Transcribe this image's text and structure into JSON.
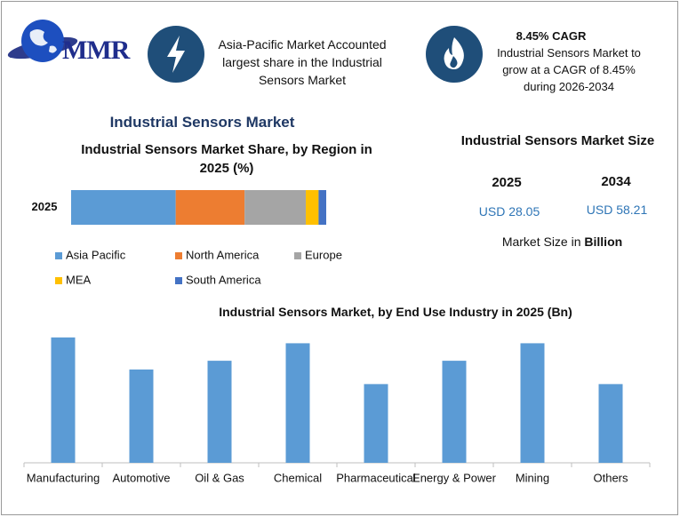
{
  "header": {
    "logo": "MMR",
    "highlight": {
      "lines": [
        "Asia-Pacific Market Accounted",
        "largest share in the Industrial",
        "Sensors Market"
      ]
    },
    "cagr": {
      "title": "8.45% CAGR",
      "lines": [
        "Industrial Sensors Market to",
        "grow at a CAGR of 8.45%",
        "during 2026-2034"
      ]
    }
  },
  "section_title": "Industrial Sensors Market",
  "market_size": {
    "title": "Industrial Sensors Market Size",
    "years": [
      "2025",
      "2034"
    ],
    "values": [
      "USD 28.05",
      "USD 58.21"
    ],
    "note": [
      "Market Size in",
      "Billion"
    ]
  },
  "chart_data": [
    {
      "type": "stacked-bar-horizontal",
      "title": "Industrial Sensors Market Share, by Region in 2025 (%)",
      "categories": [
        "2025"
      ],
      "xlim": [
        0,
        100
      ],
      "legend": "bottom",
      "series": [
        {
          "name": "Asia Pacific",
          "color": "#5b9bd5",
          "values": [
            41
          ]
        },
        {
          "name": "North America",
          "color": "#ed7d31",
          "values": [
            27
          ]
        },
        {
          "name": "Europe",
          "color": "#a5a5a5",
          "values": [
            24
          ]
        },
        {
          "name": "MEA",
          "color": "#ffc000",
          "values": [
            5
          ]
        },
        {
          "name": "South America",
          "color": "#4472c4",
          "values": [
            3
          ]
        }
      ]
    },
    {
      "type": "bar",
      "title": "Industrial Sensors Market, by End Use Industry in 2025 (Bn)",
      "categories": [
        "Manufacturing",
        "Automotive",
        "Oil & Gas",
        "Chemical",
        "Pharmaceutical",
        "Energy & Power",
        "Mining",
        "Others"
      ],
      "values": [
        4.3,
        3.2,
        3.5,
        4.1,
        2.7,
        3.5,
        4.1,
        2.7
      ],
      "color": "#5b9bd5",
      "ylim": [
        0,
        4.6
      ]
    }
  ]
}
